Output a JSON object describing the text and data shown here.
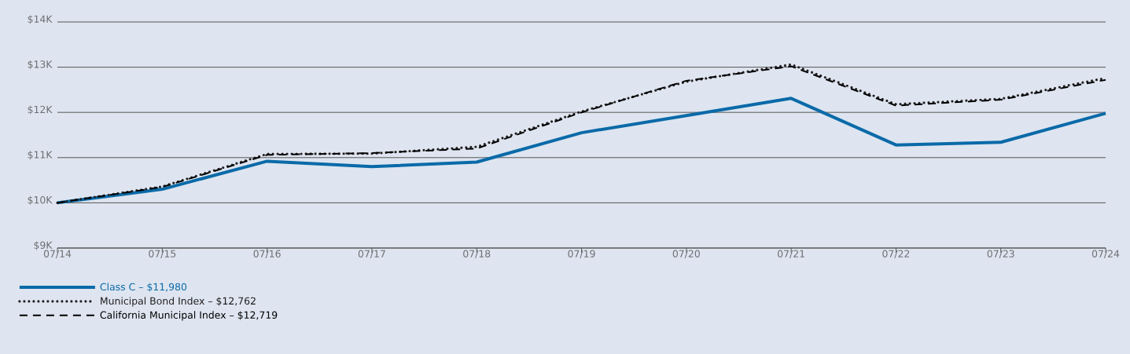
{
  "chart_data": {
    "type": "line",
    "categories": [
      "07/14",
      "07/15",
      "07/16",
      "07/17",
      "07/18",
      "07/19",
      "07/20",
      "07/21",
      "07/22",
      "07/23",
      "07/24"
    ],
    "series": [
      {
        "name": "Class C – $11,980",
        "color": "#0a6aa8",
        "line_style": "solid",
        "values": [
          10000,
          10300,
          10920,
          10800,
          10900,
          11550,
          11930,
          12310,
          11280,
          11340,
          11980
        ]
      },
      {
        "name": "Municipal Bond Index – $12,762",
        "color": "#231f20",
        "line_style": "dotted",
        "values": [
          10000,
          10360,
          11080,
          11090,
          11240,
          12020,
          12680,
          13060,
          12180,
          12300,
          12760
        ]
      },
      {
        "name": "California Municipal Index – $12,719",
        "color": "#000000",
        "line_style": "dashed",
        "values": [
          10000,
          10350,
          11060,
          11100,
          11200,
          12000,
          12700,
          13020,
          12150,
          12280,
          12720
        ]
      }
    ],
    "ylim": [
      9000,
      14000
    ],
    "yticks": [
      {
        "value": 9000,
        "label": "$9K"
      },
      {
        "value": 10000,
        "label": "$10K"
      },
      {
        "value": 11000,
        "label": "$11K"
      },
      {
        "value": 12000,
        "label": "$12K"
      },
      {
        "value": 13000,
        "label": "$13K"
      },
      {
        "value": 14000,
        "label": "$14K"
      }
    ],
    "grid": "y",
    "legend": "bottom",
    "marker": "none"
  }
}
